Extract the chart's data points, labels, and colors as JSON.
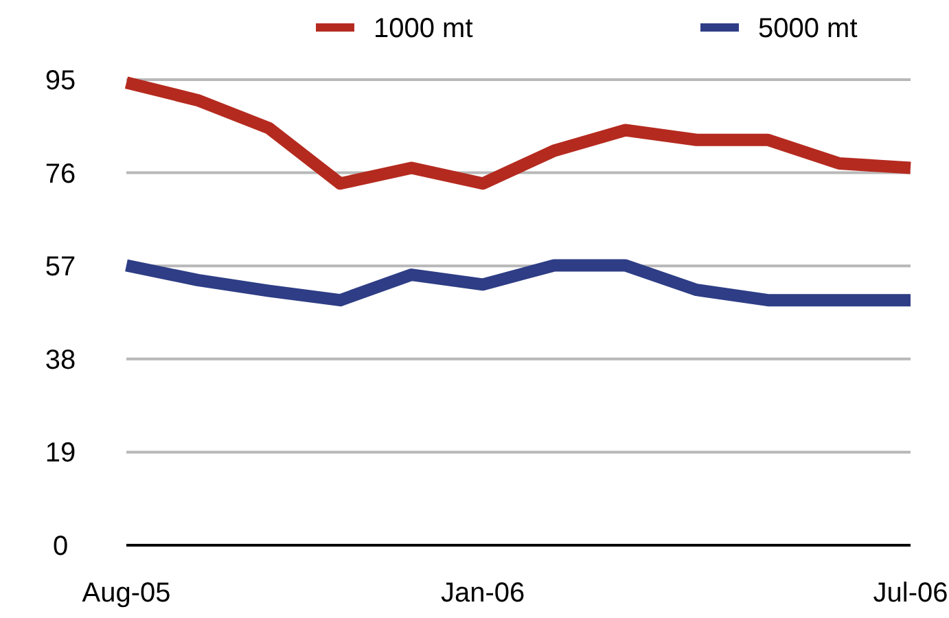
{
  "chart_data": {
    "type": "line",
    "categories": [
      "Aug-05",
      null,
      null,
      null,
      null,
      "Jan-06",
      null,
      null,
      null,
      null,
      null,
      "Jul-06"
    ],
    "series": [
      {
        "name": "1000 mt",
        "color": "#b52a1f",
        "values": [
          94.4,
          90.8,
          85.1,
          73.8,
          77.0,
          73.8,
          80.5,
          84.7,
          82.7,
          82.7,
          77.9,
          77.0
        ]
      },
      {
        "name": "5000 mt",
        "color": "#2e3d85",
        "values": [
          57.1,
          54.1,
          51.9,
          50.0,
          55.2,
          53.2,
          57.1,
          57.1,
          52.1,
          50.0,
          50.0,
          50.0
        ]
      }
    ],
    "ylim": [
      0,
      95
    ],
    "yticks": [
      0,
      19,
      38,
      57,
      76,
      95
    ],
    "grid": "y",
    "legend": "top",
    "marker": "none",
    "line_style": "solid"
  }
}
